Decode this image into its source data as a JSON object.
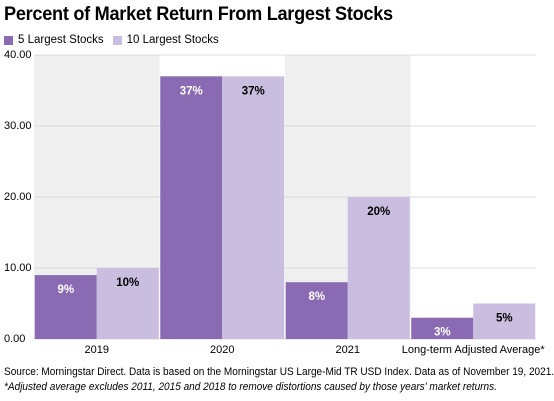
{
  "title": "Percent of Market Return From Largest Stocks",
  "colors": {
    "series1": "#8a6bb3",
    "series2": "#c9bedf",
    "band": "#efefef",
    "grid": "#d0d0d0"
  },
  "chart_data": {
    "type": "bar",
    "categories": [
      "2019",
      "2020",
      "2021",
      "Long-term Adjusted Average*"
    ],
    "series": [
      {
        "name": "5 Largest Stocks",
        "values": [
          9,
          37,
          8,
          3
        ],
        "labels": [
          "9%",
          "37%",
          "8%",
          "3%"
        ]
      },
      {
        "name": "10 Largest Stocks",
        "values": [
          10,
          37,
          20,
          5
        ],
        "labels": [
          "10%",
          "37%",
          "20%",
          "5%"
        ]
      }
    ],
    "y_ticks": [
      "0.00",
      "10.00",
      "20.00",
      "30.00",
      "40.00"
    ],
    "ylim": [
      0,
      40
    ],
    "grid": true,
    "legend": "top-left"
  },
  "source": "Source: Morningstar Direct. Data is based on the Morningstar US Large-Mid TR USD Index. Data as of November 19, 2021.",
  "note": "*Adjusted average excludes 2011, 2015 and 2018 to remove distortions caused by those years' market returns."
}
